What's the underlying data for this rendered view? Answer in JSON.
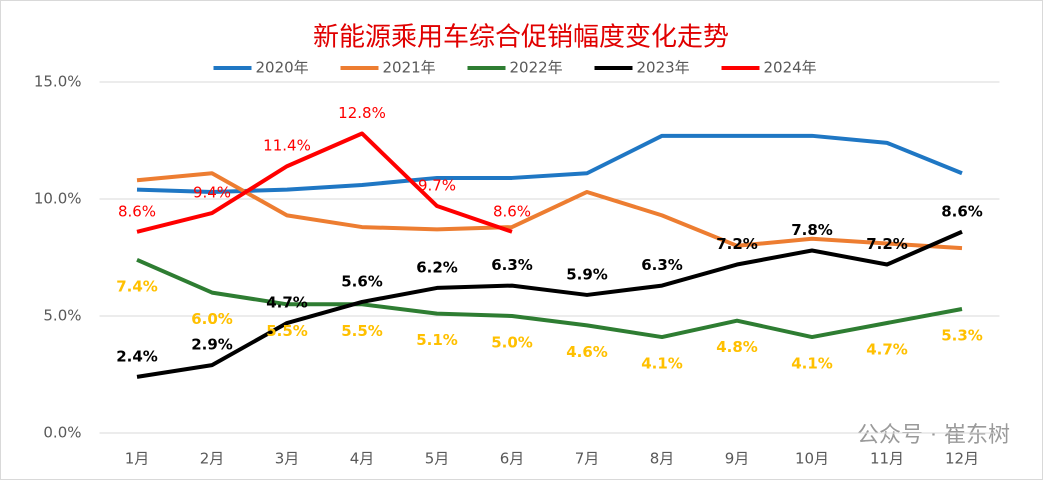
{
  "chart_data": {
    "type": "line",
    "title": "新能源乘用车综合促销幅度变化走势",
    "categories": [
      "1月",
      "2月",
      "3月",
      "4月",
      "5月",
      "6月",
      "7月",
      "8月",
      "9月",
      "10月",
      "11月",
      "12月"
    ],
    "series": [
      {
        "name": "2020年",
        "color": "#1f77c4",
        "values": [
          10.4,
          10.3,
          10.4,
          10.6,
          10.9,
          10.9,
          11.1,
          12.7,
          12.7,
          12.7,
          12.4,
          11.1
        ]
      },
      {
        "name": "2021年",
        "color": "#ed7d31",
        "values": [
          10.8,
          11.1,
          9.3,
          8.8,
          8.7,
          8.8,
          10.3,
          9.3,
          8.0,
          8.3,
          8.1,
          7.9
        ]
      },
      {
        "name": "2022年",
        "color": "#2e7d32",
        "values": [
          7.4,
          6.0,
          5.5,
          5.5,
          5.1,
          5.0,
          4.6,
          4.1,
          4.8,
          4.1,
          4.7,
          5.3
        ],
        "value_labels": [
          "7.4%",
          "6.0%",
          "5.5%",
          "5.5%",
          "5.1%",
          "5.0%",
          "4.6%",
          "4.1%",
          "4.8%",
          "4.1%",
          "4.7%",
          "5.3%"
        ],
        "label_color": "#ffc000"
      },
      {
        "name": "2023年",
        "color": "#000000",
        "values": [
          2.4,
          2.9,
          4.7,
          5.6,
          6.2,
          6.3,
          5.9,
          6.3,
          7.2,
          7.8,
          7.2,
          8.6
        ],
        "value_labels": [
          "2.4%",
          "2.9%",
          "4.7%",
          "5.6%",
          "6.2%",
          "6.3%",
          "5.9%",
          "6.3%",
          "7.2%",
          "7.8%",
          "7.2%",
          "8.6%"
        ],
        "label_color": "#000000"
      },
      {
        "name": "2024年",
        "color": "#ff0000",
        "values": [
          8.6,
          9.4,
          11.4,
          12.8,
          9.7,
          8.6,
          null,
          null,
          null,
          null,
          null,
          null
        ],
        "value_labels": [
          "8.6%",
          "9.4%",
          "11.4%",
          "12.8%",
          "9.7%",
          "8.6%",
          null,
          null,
          null,
          null,
          null,
          null
        ],
        "label_color": "#ff0000"
      }
    ],
    "ylim": [
      0,
      15
    ],
    "yticks": [
      {
        "value": 0,
        "label": "0.0%"
      },
      {
        "value": 5,
        "label": "5.0%"
      },
      {
        "value": 10,
        "label": "10.0%"
      },
      {
        "value": 15,
        "label": "15.0%"
      }
    ],
    "grid": true,
    "legend": "top",
    "watermark": "公众号 · 崔东树"
  }
}
